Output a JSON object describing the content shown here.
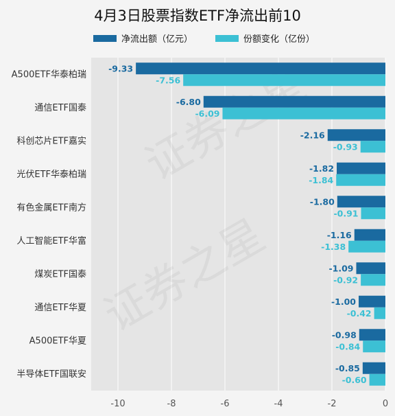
{
  "chart_data": {
    "type": "bar",
    "orientation": "horizontal",
    "title": "4月3日股票指数ETF净流出前10",
    "categories": [
      "A500ETF华泰柏瑞",
      "通信ETF国泰",
      "科创芯片ETF嘉实",
      "光伏ETF华泰柏瑞",
      "有色金属ETF南方",
      "人工智能ETF华富",
      "煤炭ETF国泰",
      "通信ETF华夏",
      "A500ETF华夏",
      "半导体ETF国联安"
    ],
    "series": [
      {
        "name": "净流出额（亿元）",
        "color": "#1a6aa0",
        "values": [
          -9.33,
          -6.8,
          -2.16,
          -1.82,
          -1.8,
          -1.16,
          -1.09,
          -1.0,
          -0.98,
          -0.85
        ],
        "labels": [
          "-9.33",
          "-6.80",
          "-2.16",
          "-1.82",
          "-1.80",
          "-1.16",
          "-1.09",
          "-1.00",
          "-0.98",
          "-0.85"
        ]
      },
      {
        "name": "份额变化（亿份）",
        "color": "#3cc0d4",
        "values": [
          -7.56,
          -6.09,
          -0.93,
          -1.84,
          -0.91,
          -1.38,
          -0.92,
          -0.42,
          -0.84,
          -0.6
        ],
        "labels": [
          "-7.56",
          "-6.09",
          "-0.93",
          "-1.84",
          "-0.91",
          "-1.38",
          "-0.92",
          "-0.42",
          "-0.84",
          "-0.60"
        ]
      }
    ],
    "xlim": [
      -11,
      0
    ],
    "xticks": [
      -10,
      -8,
      -6,
      -4,
      -2,
      0
    ],
    "xtick_labels": [
      "-10",
      "-8",
      "-6",
      "-4",
      "-2",
      "0"
    ],
    "legend_position": "top-center",
    "grid": true,
    "watermark": "证券之星",
    "colors": {
      "background": "#f4f4f4",
      "plot_background": "#e5e5e5",
      "grid": "#ffffff"
    }
  }
}
